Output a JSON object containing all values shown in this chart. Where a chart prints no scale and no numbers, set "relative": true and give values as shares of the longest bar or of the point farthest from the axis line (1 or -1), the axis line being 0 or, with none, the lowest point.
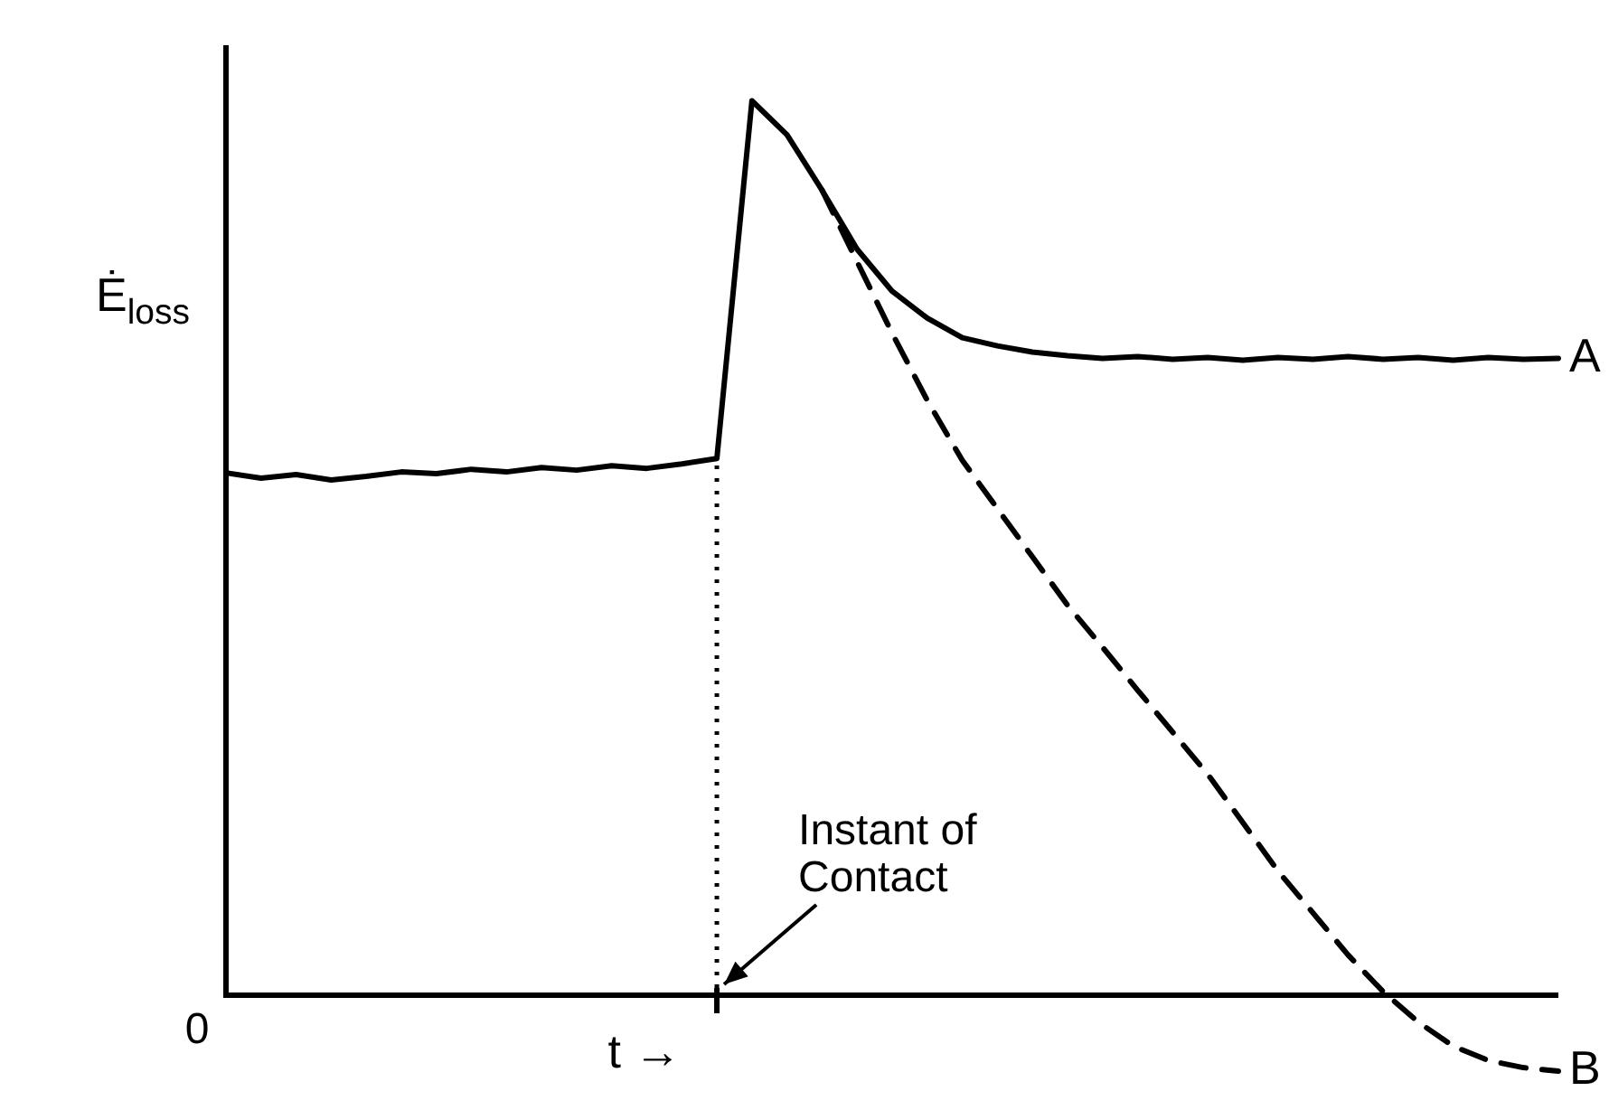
{
  "chart_data": {
    "type": "line",
    "relative": true,
    "xlabel": "t →",
    "ylabel": "Ė$_{loss}$",
    "marker": "none",
    "grid": false,
    "legend": false,
    "categories": [
      null,
      null,
      null,
      null,
      null,
      null,
      null,
      null,
      null,
      null,
      null,
      null,
      null,
      null,
      null,
      null,
      null,
      null,
      null,
      null,
      null,
      null,
      null,
      null,
      null,
      null,
      null,
      null,
      null,
      null,
      null,
      null,
      null,
      null,
      null,
      null,
      null,
      null,
      null
    ],
    "series": [
      {
        "name": "A",
        "color": "#000000",
        "line_style": "solid",
        "values": [
          0.584,
          0.578,
          0.582,
          0.576,
          0.58,
          0.585,
          0.583,
          0.588,
          0.585,
          0.59,
          0.587,
          0.592,
          0.589,
          0.594,
          0.6,
          1.0,
          0.962,
          0.9,
          0.834,
          0.787,
          0.757,
          0.735,
          0.726,
          0.719,
          0.715,
          0.712,
          0.714,
          0.711,
          0.713,
          0.71,
          0.713,
          0.711,
          0.714,
          0.711,
          0.713,
          0.71,
          0.713,
          0.711,
          0.712
        ]
      },
      {
        "name": "B",
        "color": "#000000",
        "line_style": "dashed",
        "values": [
          null,
          null,
          null,
          null,
          null,
          null,
          null,
          null,
          null,
          null,
          null,
          null,
          null,
          null,
          null,
          null,
          null,
          0.9,
          0.82,
          0.74,
          0.665,
          0.598,
          0.544,
          0.49,
          0.436,
          0.389,
          0.341,
          0.294,
          0.247,
          0.193,
          0.139,
          0.092,
          0.045,
          0.004,
          -0.03,
          -0.057,
          -0.073,
          -0.081,
          -0.085
        ]
      }
    ],
    "annotations": [
      "Instant of Contact",
      "0"
    ]
  }
}
